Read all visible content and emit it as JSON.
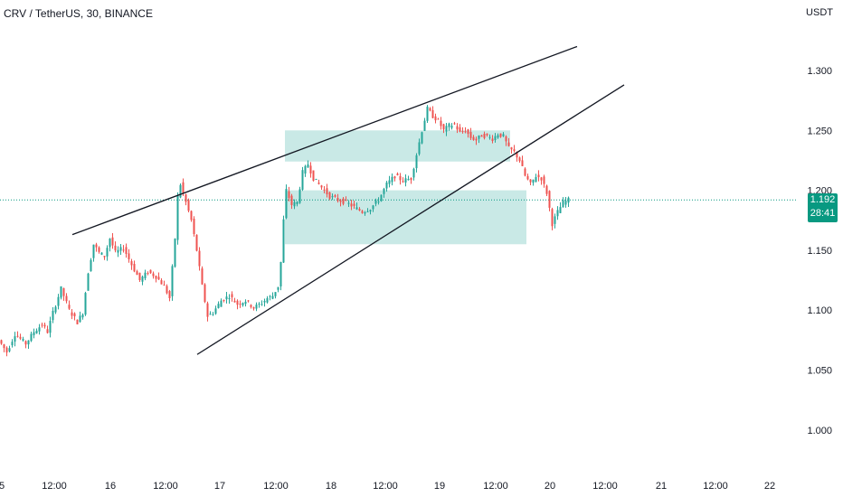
{
  "header": {
    "symbol_title": "CRV / TetherUS, 30, BINANCE",
    "currency": "USDT"
  },
  "price_badge": {
    "price": "1.192",
    "countdown": "28:41"
  },
  "colors": {
    "up": "#26a69a",
    "down": "#ef5350",
    "zone_fill": "#b2dfdb",
    "trendline": "#131722",
    "last_price_line": "#089981",
    "axis_text": "#131722"
  },
  "chart_data": {
    "type": "candlestick",
    "symbol": "CRV / TetherUS",
    "interval": "30",
    "exchange": "BINANCE",
    "y_axis": {
      "unit": "USDT",
      "ticks": [
        "1.300",
        "1.250",
        "1.200",
        "1.150",
        "1.100",
        "1.050",
        "1.000"
      ],
      "ylim": [
        0.975,
        1.325
      ]
    },
    "x_axis": {
      "ticks": [
        "5",
        "12:00",
        "16",
        "12:00",
        "17",
        "12:00",
        "18",
        "12:00",
        "19",
        "12:00",
        "20",
        "12:00",
        "21",
        "12:00",
        "22"
      ]
    },
    "last_price": 1.192,
    "price_path": [
      [
        0,
        1.075
      ],
      [
        3,
        1.065
      ],
      [
        6,
        1.08
      ],
      [
        10,
        1.072
      ],
      [
        13,
        1.082
      ],
      [
        16,
        1.088
      ],
      [
        18,
        1.082
      ],
      [
        20,
        1.098
      ],
      [
        23,
        1.118
      ],
      [
        26,
        1.1
      ],
      [
        29,
        1.09
      ],
      [
        31,
        1.098
      ],
      [
        33,
        1.132
      ],
      [
        35,
        1.155
      ],
      [
        37,
        1.148
      ],
      [
        39,
        1.145
      ],
      [
        41,
        1.16
      ],
      [
        43,
        1.148
      ],
      [
        46,
        1.152
      ],
      [
        49,
        1.138
      ],
      [
        52,
        1.125
      ],
      [
        55,
        1.132
      ],
      [
        58,
        1.128
      ],
      [
        61,
        1.12
      ],
      [
        63,
        1.11
      ],
      [
        65,
        1.16
      ],
      [
        66,
        1.195
      ],
      [
        67,
        1.205
      ],
      [
        69,
        1.19
      ],
      [
        71,
        1.175
      ],
      [
        73,
        1.15
      ],
      [
        75,
        1.12
      ],
      [
        77,
        1.095
      ],
      [
        79,
        1.098
      ],
      [
        82,
        1.108
      ],
      [
        85,
        1.112
      ],
      [
        88,
        1.105
      ],
      [
        91,
        1.108
      ],
      [
        94,
        1.102
      ],
      [
        97,
        1.106
      ],
      [
        99,
        1.11
      ],
      [
        101,
        1.112
      ],
      [
        103,
        1.12
      ],
      [
        104,
        1.14
      ],
      [
        105,
        1.175
      ],
      [
        106,
        1.2
      ],
      [
        108,
        1.188
      ],
      [
        110,
        1.19
      ],
      [
        112,
        1.215
      ],
      [
        114,
        1.222
      ],
      [
        116,
        1.21
      ],
      [
        118,
        1.205
      ],
      [
        120,
        1.2
      ],
      [
        122,
        1.195
      ],
      [
        125,
        1.192
      ],
      [
        128,
        1.19
      ],
      [
        131,
        1.186
      ],
      [
        134,
        1.182
      ],
      [
        137,
        1.185
      ],
      [
        140,
        1.192
      ],
      [
        143,
        1.205
      ],
      [
        146,
        1.212
      ],
      [
        149,
        1.208
      ],
      [
        152,
        1.21
      ],
      [
        154,
        1.23
      ],
      [
        156,
        1.25
      ],
      [
        158,
        1.268
      ],
      [
        160,
        1.262
      ],
      [
        162,
        1.258
      ],
      [
        164,
        1.25
      ],
      [
        166,
        1.254
      ],
      [
        168,
        1.255
      ],
      [
        170,
        1.248
      ],
      [
        172,
        1.25
      ],
      [
        174,
        1.244
      ],
      [
        176,
        1.242
      ],
      [
        178,
        1.246
      ],
      [
        180,
        1.245
      ],
      [
        182,
        1.243
      ],
      [
        184,
        1.247
      ],
      [
        186,
        1.245
      ],
      [
        188,
        1.235
      ],
      [
        190,
        1.232
      ],
      [
        192,
        1.225
      ],
      [
        194,
        1.212
      ],
      [
        196,
        1.205
      ],
      [
        198,
        1.212
      ],
      [
        200,
        1.21
      ],
      [
        202,
        1.198
      ],
      [
        204,
        1.172
      ],
      [
        206,
        1.182
      ],
      [
        208,
        1.19
      ],
      [
        210,
        1.192
      ]
    ],
    "drawings": {
      "upper_trendline": [
        [
          20,
          1.163
        ],
        [
          210,
          1.32
        ]
      ],
      "lower_trendline": [
        [
          54,
          1.063
        ],
        [
          230,
          1.288
        ]
      ],
      "upper_zone": {
        "x": [
          79,
          162
        ],
        "y": [
          1.224,
          1.25
        ]
      },
      "lower_zone": {
        "x": [
          79,
          168
        ],
        "y": [
          1.155,
          1.2
        ]
      }
    }
  }
}
